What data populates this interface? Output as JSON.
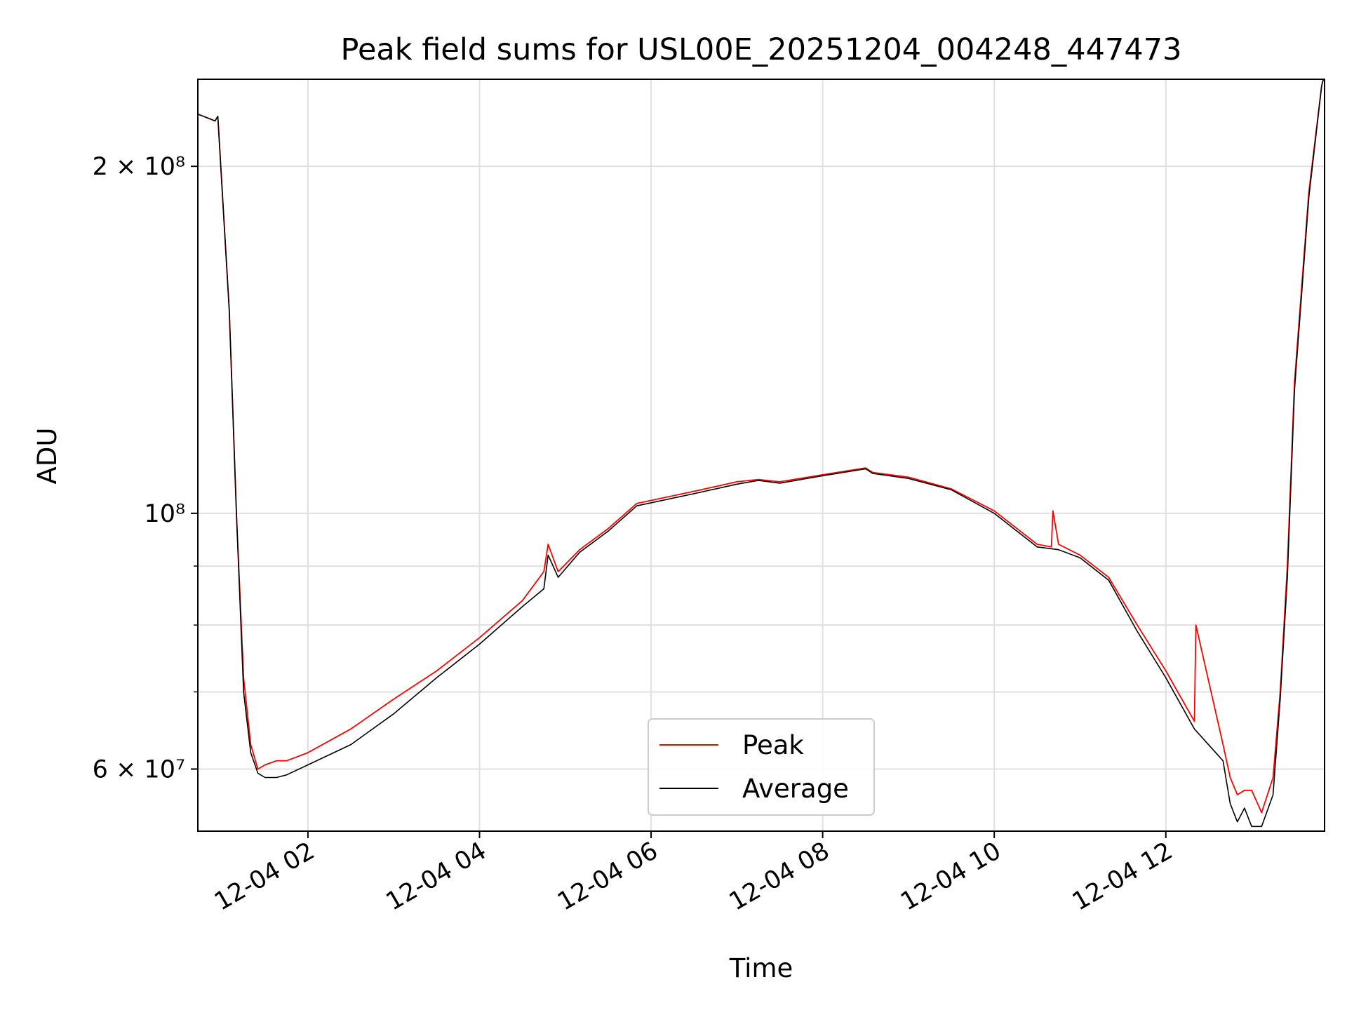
{
  "chart_data": {
    "type": "line",
    "title": "Peak field sums for USL00E_20251204_004248_447473",
    "xlabel": "Time",
    "ylabel": "ADU",
    "y_scale": "log",
    "grid": true,
    "legend_position": "lower center",
    "xlim": [
      "2025-12-04 00:43",
      "2025-12-04 13:51"
    ],
    "ylim": [
      53000000,
      238000000
    ],
    "x_ticks": [
      "2025-12-04 02:00",
      "2025-12-04 04:00",
      "2025-12-04 06:00",
      "2025-12-04 08:00",
      "2025-12-04 10:00",
      "2025-12-04 12:00"
    ],
    "x_tick_labels": [
      "12-04 02",
      "12-04 04",
      "12-04 06",
      "12-04 08",
      "12-04 10",
      "12-04 12"
    ],
    "y_major_ticks": [
      {
        "value": 200000000,
        "label": "2 × 10⁸"
      },
      {
        "value": 100000000,
        "label": "10⁸"
      },
      {
        "value": 60000000,
        "label": "6 × 10⁷"
      }
    ],
    "y_minor_ticks": [
      70000000,
      80000000,
      90000000
    ],
    "colors": {
      "peak": "#ff0000",
      "average": "#000000",
      "grid": "#e0e0e0"
    },
    "series": [
      {
        "name": "Peak",
        "color": "#ff0000",
        "x": [
          "2025-12-04 00:43",
          "2025-12-04 00:55",
          "2025-12-04 00:57",
          "2025-12-04 01:05",
          "2025-12-04 01:10",
          "2025-12-04 01:15",
          "2025-12-04 01:20",
          "2025-12-04 01:25",
          "2025-12-04 01:30",
          "2025-12-04 01:38",
          "2025-12-04 01:45",
          "2025-12-04 02:00",
          "2025-12-04 02:30",
          "2025-12-04 03:00",
          "2025-12-04 03:30",
          "2025-12-04 04:00",
          "2025-12-04 04:30",
          "2025-12-04 04:45",
          "2025-12-04 04:48",
          "2025-12-04 04:55",
          "2025-12-04 05:10",
          "2025-12-04 05:30",
          "2025-12-04 05:50",
          "2025-12-04 06:30",
          "2025-12-04 07:00",
          "2025-12-04 07:15",
          "2025-12-04 07:30",
          "2025-12-04 08:00",
          "2025-12-04 08:30",
          "2025-12-04 08:35",
          "2025-12-04 09:00",
          "2025-12-04 09:30",
          "2025-12-04 10:00",
          "2025-12-04 10:30",
          "2025-12-04 10:40",
          "2025-12-04 10:41",
          "2025-12-04 10:45",
          "2025-12-04 11:00",
          "2025-12-04 11:20",
          "2025-12-04 11:40",
          "2025-12-04 12:00",
          "2025-12-04 12:20",
          "2025-12-04 12:21",
          "2025-12-04 12:40",
          "2025-12-04 12:45",
          "2025-12-04 12:50",
          "2025-12-04 12:55",
          "2025-12-04 13:00",
          "2025-12-04 13:07",
          "2025-12-04 13:15",
          "2025-12-04 13:20",
          "2025-12-04 13:25",
          "2025-12-04 13:30",
          "2025-12-04 13:40",
          "2025-12-04 13:49",
          "2025-12-04 13:51"
        ],
        "y": [
          222000000,
          219000000,
          221000000,
          150000000,
          100000000,
          72000000,
          63000000,
          60000000,
          60500000,
          61000000,
          61000000,
          62000000,
          65000000,
          69000000,
          73000000,
          78000000,
          84000000,
          89000000,
          94000000,
          89000000,
          93000000,
          97000000,
          102000000,
          104500000,
          106500000,
          107000000,
          106500000,
          108000000,
          109500000,
          108500000,
          107500000,
          105000000,
          100500000,
          94000000,
          93500000,
          100500000,
          94000000,
          92000000,
          88000000,
          80000000,
          73000000,
          66000000,
          80000000,
          63000000,
          59000000,
          57000000,
          57500000,
          57500000,
          55000000,
          59000000,
          70000000,
          90000000,
          130000000,
          190000000,
          235000000,
          240000000
        ]
      },
      {
        "name": "Average",
        "color": "#000000",
        "x": [
          "2025-12-04 00:43",
          "2025-12-04 00:55",
          "2025-12-04 00:57",
          "2025-12-04 01:05",
          "2025-12-04 01:10",
          "2025-12-04 01:15",
          "2025-12-04 01:20",
          "2025-12-04 01:25",
          "2025-12-04 01:30",
          "2025-12-04 01:38",
          "2025-12-04 01:45",
          "2025-12-04 02:00",
          "2025-12-04 02:30",
          "2025-12-04 03:00",
          "2025-12-04 03:30",
          "2025-12-04 04:00",
          "2025-12-04 04:30",
          "2025-12-04 04:45",
          "2025-12-04 04:48",
          "2025-12-04 04:55",
          "2025-12-04 05:10",
          "2025-12-04 05:30",
          "2025-12-04 05:50",
          "2025-12-04 06:30",
          "2025-12-04 07:00",
          "2025-12-04 07:15",
          "2025-12-04 07:30",
          "2025-12-04 08:00",
          "2025-12-04 08:30",
          "2025-12-04 08:35",
          "2025-12-04 09:00",
          "2025-12-04 09:30",
          "2025-12-04 10:00",
          "2025-12-04 10:30",
          "2025-12-04 10:45",
          "2025-12-04 11:00",
          "2025-12-04 11:20",
          "2025-12-04 11:40",
          "2025-12-04 12:00",
          "2025-12-04 12:20",
          "2025-12-04 12:40",
          "2025-12-04 12:45",
          "2025-12-04 12:50",
          "2025-12-04 12:55",
          "2025-12-04 13:00",
          "2025-12-04 13:07",
          "2025-12-04 13:15",
          "2025-12-04 13:20",
          "2025-12-04 13:25",
          "2025-12-04 13:30",
          "2025-12-04 13:40",
          "2025-12-04 13:49",
          "2025-12-04 13:51"
        ],
        "y": [
          222000000,
          219000000,
          221000000,
          150000000,
          100000000,
          70000000,
          62000000,
          59500000,
          59000000,
          59000000,
          59300000,
          60500000,
          63000000,
          67000000,
          72000000,
          77000000,
          83000000,
          86000000,
          92000000,
          88000000,
          92500000,
          96500000,
          101500000,
          104000000,
          106000000,
          106800000,
          106200000,
          107800000,
          109300000,
          108300000,
          107200000,
          104800000,
          100000000,
          93500000,
          93000000,
          91500000,
          87500000,
          79000000,
          72000000,
          65000000,
          61000000,
          56000000,
          54000000,
          55500000,
          53500000,
          53500000,
          57000000,
          69000000,
          88000000,
          128000000,
          188000000,
          235000000,
          240000000
        ]
      }
    ]
  }
}
